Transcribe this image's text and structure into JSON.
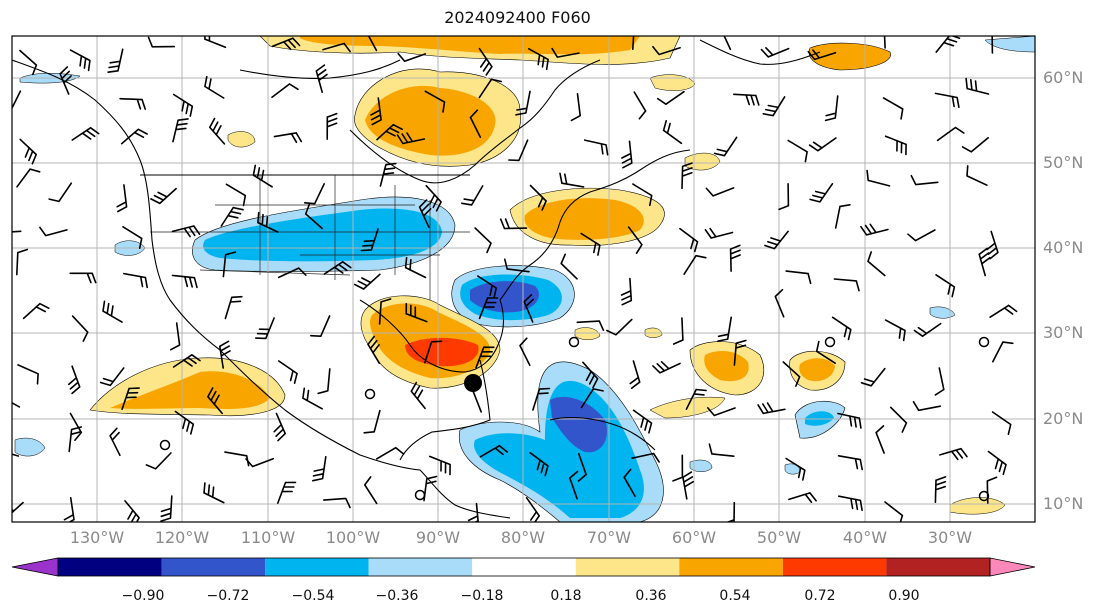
{
  "title": "2024092400 F060",
  "lat_labels": [
    "60°N",
    "50°N",
    "40°N",
    "30°N",
    "20°N",
    "10°N"
  ],
  "lon_labels": [
    "130°W",
    "120°W",
    "110°W",
    "100°W",
    "90°W",
    "80°W",
    "70°W",
    "60°W",
    "50°W",
    "40°W",
    "30°W"
  ],
  "colorbar": {
    "ticks": [
      "−0.90",
      "−0.72",
      "−0.54",
      "−0.36",
      "−0.18",
      "0.18",
      "0.36",
      "0.54",
      "0.72",
      "0.90"
    ],
    "colors": [
      "#9933cc",
      "#000080",
      "#3355cc",
      "#00b4f0",
      "#a8dcf8",
      "#ffffff",
      "#fde68a",
      "#f9a500",
      "#ff3a00",
      "#b22222",
      "#ff88bb"
    ]
  },
  "fill_colors": {
    "pos1": "#fde68a",
    "pos2": "#f9a500",
    "pos3": "#ff3a00",
    "neg1": "#a8dcf8",
    "neg2": "#00b4f0",
    "neg3": "#3355cc"
  },
  "storm_marker": "black-dot"
}
